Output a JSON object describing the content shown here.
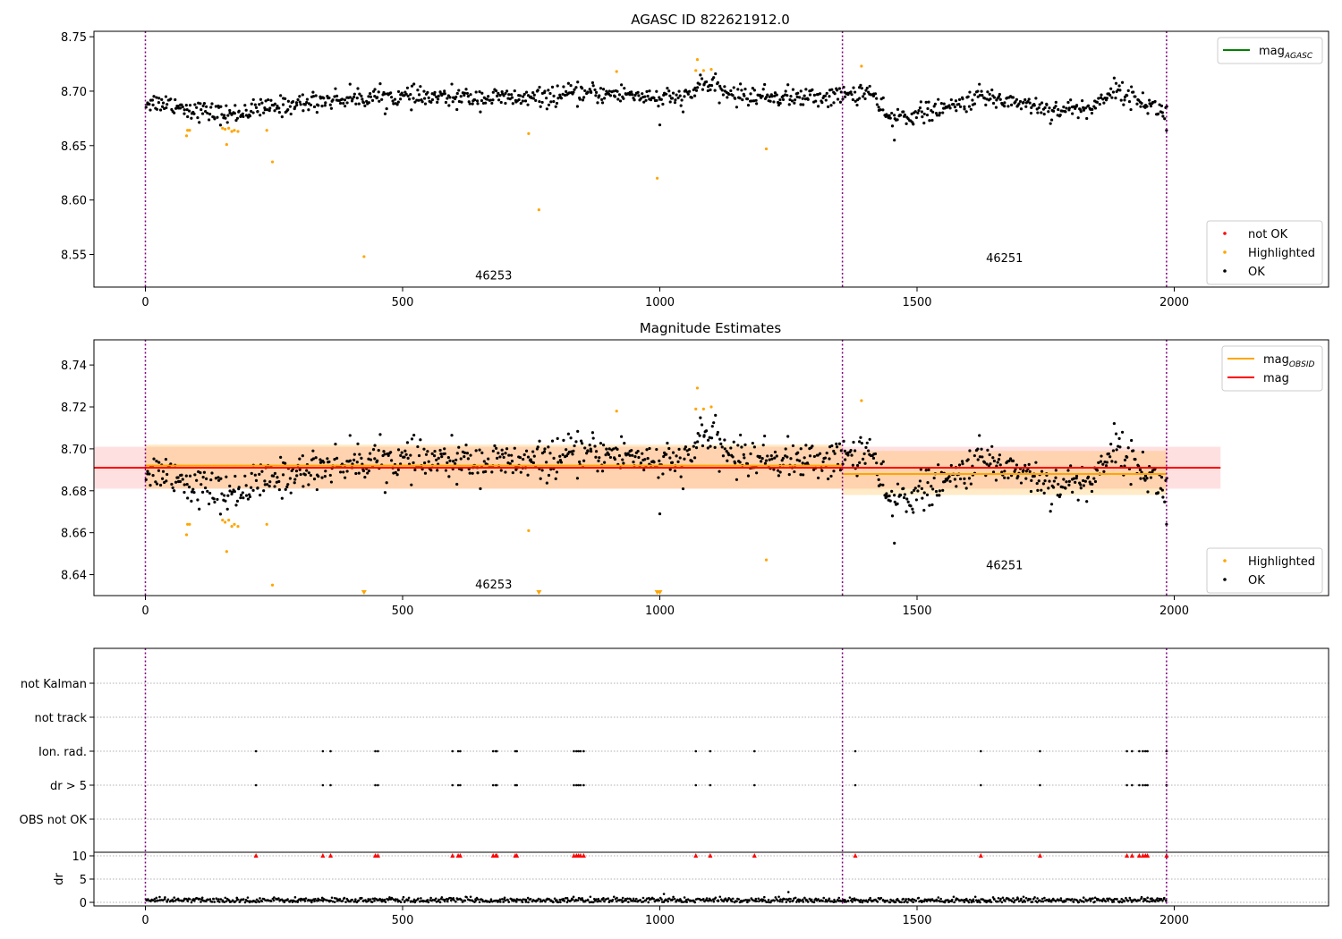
{
  "figure": {
    "panel1_title": "AGASC ID 822621912.0",
    "panel2_title": "Magnitude Estimates"
  },
  "chart_data": [
    {
      "type": "scatter",
      "title": "AGASC ID 822621912.0",
      "xlim": [
        -100,
        2300
      ],
      "ylim": [
        8.52,
        8.755
      ],
      "x_ticks": [
        0,
        500,
        1000,
        1500,
        2000
      ],
      "y_ticks": [
        8.55,
        8.6,
        8.65,
        8.7,
        8.75
      ],
      "y_tick_labels": [
        "8.55",
        "8.60",
        "8.65",
        "8.70",
        "8.75"
      ],
      "obsid_boundaries": [
        0,
        1355,
        1985
      ],
      "obsid_labels": [
        {
          "text": "46253",
          "x": 677,
          "y": 8.527
        },
        {
          "text": "46251",
          "x": 1670,
          "y": 8.543
        }
      ],
      "legend_upper": [
        {
          "name": "mag",
          "sub": "AGASC",
          "color": "#008000",
          "kind": "line"
        }
      ],
      "legend_lower": [
        {
          "name": "not OK",
          "color": "#ff0000",
          "kind": "marker"
        },
        {
          "name": "Highlighted",
          "color": "#ffa500",
          "kind": "marker"
        },
        {
          "name": "OK",
          "color": "#000000",
          "kind": "marker"
        }
      ],
      "series": [
        {
          "name": "OK",
          "color": "#000000",
          "n_points": 1985,
          "trend": [
            [
              0,
              8.69
            ],
            [
              50,
              8.689
            ],
            [
              80,
              8.684
            ],
            [
              120,
              8.681
            ],
            [
              160,
              8.678
            ],
            [
              200,
              8.682
            ],
            [
              260,
              8.686
            ],
            [
              350,
              8.692
            ],
            [
              450,
              8.695
            ],
            [
              550,
              8.694
            ],
            [
              650,
              8.694
            ],
            [
              750,
              8.693
            ],
            [
              850,
              8.698
            ],
            [
              950,
              8.697
            ],
            [
              1000,
              8.693
            ],
            [
              1060,
              8.694
            ],
            [
              1080,
              8.709
            ],
            [
              1110,
              8.702
            ],
            [
              1150,
              8.696
            ],
            [
              1300,
              8.694
            ],
            [
              1355,
              8.696
            ],
            [
              1410,
              8.7
            ],
            [
              1440,
              8.675
            ],
            [
              1500,
              8.679
            ],
            [
              1560,
              8.684
            ],
            [
              1620,
              8.695
            ],
            [
              1700,
              8.69
            ],
            [
              1760,
              8.683
            ],
            [
              1840,
              8.684
            ],
            [
              1880,
              8.702
            ],
            [
              1940,
              8.69
            ],
            [
              1985,
              8.68
            ]
          ],
          "scatter_sd": 0.006,
          "outliers": [
            [
              1000,
              8.669
            ],
            [
              1456,
              8.655
            ],
            [
              1985,
              8.664
            ]
          ]
        },
        {
          "name": "Highlighted",
          "color": "#ffa500",
          "values": [
            [
              80,
              8.659
            ],
            [
              82,
              8.664
            ],
            [
              86,
              8.664
            ],
            [
              150,
              8.666
            ],
            [
              155,
              8.665
            ],
            [
              158,
              8.651
            ],
            [
              162,
              8.666
            ],
            [
              168,
              8.663
            ],
            [
              173,
              8.664
            ],
            [
              180,
              8.663
            ],
            [
              236,
              8.664
            ],
            [
              247,
              8.635
            ],
            [
              425,
              8.548
            ],
            [
              745,
              8.661
            ],
            [
              765,
              8.591
            ],
            [
              916,
              8.718
            ],
            [
              995,
              8.62
            ],
            [
              1070,
              8.719
            ],
            [
              1073,
              8.729
            ],
            [
              1085,
              8.719
            ],
            [
              1100,
              8.72
            ],
            [
              1207,
              8.647
            ],
            [
              1392,
              8.723
            ]
          ]
        }
      ]
    },
    {
      "type": "scatter",
      "title": "Magnitude Estimates",
      "xlim": [
        -100,
        2300
      ],
      "ylim": [
        8.63,
        8.752
      ],
      "x_ticks": [
        0,
        500,
        1000,
        1500,
        2000
      ],
      "y_ticks": [
        8.64,
        8.66,
        8.68,
        8.7,
        8.72,
        8.74
      ],
      "y_tick_labels": [
        "8.64",
        "8.66",
        "8.68",
        "8.70",
        "8.72",
        "8.74"
      ],
      "obsid_boundaries": [
        0,
        1355,
        1985
      ],
      "obsid_labels": [
        {
          "text": "46253",
          "x": 677,
          "y": 8.6335
        },
        {
          "text": "46251",
          "x": 1670,
          "y": 8.6425
        }
      ],
      "mag": {
        "value": 8.691,
        "band": [
          8.681,
          8.701
        ],
        "x_range": [
          -100,
          2090
        ],
        "color": "#ff0000"
      },
      "mag_obsid": [
        {
          "x_range": [
            0,
            1355
          ],
          "value": 8.692,
          "band": [
            8.681,
            8.702
          ]
        },
        {
          "x_range": [
            1355,
            1985
          ],
          "value": 8.688,
          "band": [
            8.678,
            8.699
          ]
        }
      ],
      "clipped_markers_x": [
        425,
        765,
        995,
        1000
      ],
      "legend_upper": [
        {
          "name": "mag",
          "sub": "OBSID",
          "color": "#ffa500",
          "kind": "line"
        },
        {
          "name": "mag",
          "sub": "",
          "color": "#ff0000",
          "kind": "line"
        }
      ],
      "legend_lower": [
        {
          "name": "Highlighted",
          "color": "#ffa500",
          "kind": "marker"
        },
        {
          "name": "OK",
          "color": "#000000",
          "kind": "marker"
        }
      ]
    },
    {
      "type": "scatter",
      "title": "",
      "xlim": [
        -100,
        2300
      ],
      "flag_rows": [
        "not Kalman",
        "not track",
        "Ion. rad.",
        "dr > 5",
        "OBS not OK"
      ],
      "flag_event_x": [
        215,
        345,
        360,
        447,
        452,
        597,
        608,
        612,
        676,
        681,
        683,
        719,
        722,
        833,
        838,
        842,
        846,
        852,
        1070,
        1098,
        1184,
        1380,
        1624,
        1739,
        1908,
        1918,
        1932,
        1939,
        1944,
        1948,
        1985
      ],
      "flag_rows_with_events": [
        "Ion. rad.",
        "dr > 5"
      ],
      "dr_ylim": [
        -0.5,
        10.5
      ],
      "dr_y_ticks": [
        0,
        5,
        10
      ],
      "dr_ylabel": "dr",
      "dr_clipped_value": 10,
      "dr_typical_max": 1.2,
      "dr_outliers": [
        [
          1008,
          1.8
        ],
        [
          1250,
          2.2
        ]
      ],
      "obsid_boundaries": [
        0,
        1355,
        1985
      ],
      "x_ticks": [
        0,
        500,
        1000,
        1500,
        2000
      ]
    }
  ]
}
